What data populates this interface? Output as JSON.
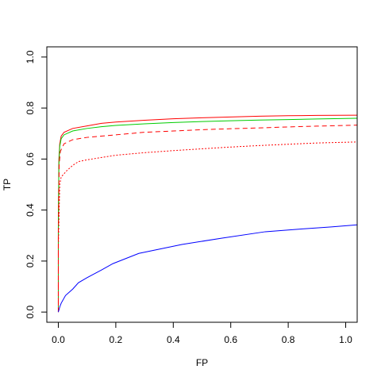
{
  "chart_data": {
    "type": "line",
    "title": "",
    "xlabel": "FP",
    "ylabel": "TP",
    "xlim": [
      -0.04,
      1.04
    ],
    "ylim": [
      -0.04,
      1.04
    ],
    "grid": false,
    "x_ticks": [
      0.0,
      0.2,
      0.4,
      0.6,
      0.8,
      1.0
    ],
    "x_tick_labels": [
      "0.0",
      "0.2",
      "0.4",
      "0.6",
      "0.8",
      "1.0"
    ],
    "y_ticks": [
      0.0,
      0.2,
      0.4,
      0.6,
      0.8,
      1.0
    ],
    "y_tick_labels": [
      "0.0",
      "0.2",
      "0.4",
      "0.6",
      "0.8",
      "1.0"
    ],
    "series": [
      {
        "color": "#ff0000",
        "style": "solid",
        "points": [
          [
            0,
            0
          ],
          [
            0,
            0.33
          ],
          [
            0.002,
            0.6
          ],
          [
            0.005,
            0.66
          ],
          [
            0.01,
            0.69
          ],
          [
            0.02,
            0.705
          ],
          [
            0.05,
            0.72
          ],
          [
            0.1,
            0.73
          ],
          [
            0.15,
            0.74
          ],
          [
            0.2,
            0.745
          ],
          [
            0.3,
            0.752
          ],
          [
            0.4,
            0.758
          ],
          [
            0.5,
            0.762
          ],
          [
            0.6,
            0.765
          ],
          [
            0.7,
            0.768
          ],
          [
            0.8,
            0.77
          ],
          [
            0.9,
            0.771
          ],
          [
            1.04,
            0.772
          ]
        ]
      },
      {
        "color": "#00cc00",
        "style": "solid",
        "points": [
          [
            0,
            0
          ],
          [
            0,
            0.33
          ],
          [
            0.002,
            0.58
          ],
          [
            0.005,
            0.65
          ],
          [
            0.01,
            0.68
          ],
          [
            0.02,
            0.695
          ],
          [
            0.05,
            0.71
          ],
          [
            0.1,
            0.72
          ],
          [
            0.15,
            0.727
          ],
          [
            0.2,
            0.732
          ],
          [
            0.3,
            0.738
          ],
          [
            0.4,
            0.743
          ],
          [
            0.5,
            0.747
          ],
          [
            0.6,
            0.75
          ],
          [
            0.7,
            0.753
          ],
          [
            0.8,
            0.755
          ],
          [
            0.9,
            0.757
          ],
          [
            1.04,
            0.76
          ]
        ]
      },
      {
        "color": "#ff0000",
        "style": "dashed",
        "points": [
          [
            0,
            0
          ],
          [
            0,
            0.3
          ],
          [
            0.003,
            0.58
          ],
          [
            0.007,
            0.63
          ],
          [
            0.02,
            0.66
          ],
          [
            0.05,
            0.676
          ],
          [
            0.1,
            0.685
          ],
          [
            0.2,
            0.695
          ],
          [
            0.3,
            0.705
          ],
          [
            0.4,
            0.71
          ],
          [
            0.5,
            0.715
          ],
          [
            0.6,
            0.719
          ],
          [
            0.7,
            0.722
          ],
          [
            0.8,
            0.726
          ],
          [
            0.9,
            0.729
          ],
          [
            1.04,
            0.733
          ]
        ]
      },
      {
        "color": "#ff0000",
        "style": "dotted",
        "points": [
          [
            0,
            0
          ],
          [
            0,
            0.25
          ],
          [
            0.005,
            0.5
          ],
          [
            0.01,
            0.53
          ],
          [
            0.03,
            0.555
          ],
          [
            0.05,
            0.575
          ],
          [
            0.07,
            0.59
          ],
          [
            0.1,
            0.597
          ],
          [
            0.2,
            0.615
          ],
          [
            0.3,
            0.625
          ],
          [
            0.4,
            0.633
          ],
          [
            0.5,
            0.64
          ],
          [
            0.6,
            0.647
          ],
          [
            0.7,
            0.653
          ],
          [
            0.8,
            0.658
          ],
          [
            0.9,
            0.663
          ],
          [
            1.04,
            0.667
          ]
        ]
      },
      {
        "color": "#0000ff",
        "style": "solid",
        "points": [
          [
            0,
            0
          ],
          [
            0.005,
            0.02
          ],
          [
            0.01,
            0.035
          ],
          [
            0.025,
            0.065
          ],
          [
            0.05,
            0.09
          ],
          [
            0.07,
            0.115
          ],
          [
            0.1,
            0.135
          ],
          [
            0.15,
            0.165
          ],
          [
            0.19,
            0.19
          ],
          [
            0.28,
            0.23
          ],
          [
            0.43,
            0.265
          ],
          [
            0.57,
            0.29
          ],
          [
            0.72,
            0.315
          ],
          [
            0.85,
            0.326
          ],
          [
            0.95,
            0.334
          ],
          [
            1.04,
            0.342
          ]
        ]
      }
    ]
  }
}
